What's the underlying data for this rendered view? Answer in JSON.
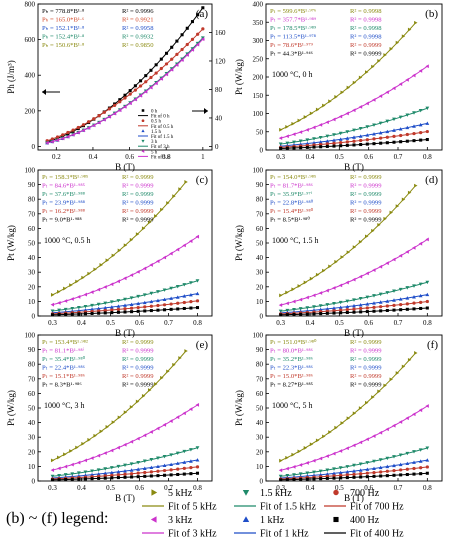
{
  "chart_data": [
    {
      "id": "a",
      "panel_label": "(a)",
      "type": "scatter",
      "xlabel": "B (T)",
      "ylabel": "Ph (J/m³)",
      "y2label": "",
      "xlim": [
        0.1,
        1.05
      ],
      "ylim": [
        -20,
        800
      ],
      "y2lim": [
        -5,
        200
      ],
      "xticks": [
        0.2,
        0.4,
        0.6,
        0.8,
        1.0
      ],
      "yticks": [
        0,
        200,
        400,
        600,
        800
      ],
      "y2ticks": [
        0,
        40,
        80,
        120,
        160
      ],
      "equations": [
        {
          "text": "Pₕ = 778.8*B¹·⁸",
          "r2": "R² = 0.9996",
          "color": "#000000"
        },
        {
          "text": "Pₕ = 165.0*B¹·⁶",
          "r2": "R² = 0.9921",
          "color": "#d2492a"
        },
        {
          "text": "Pₕ = 152.1*B¹·⁸",
          "r2": "R² = 0.9958",
          "color": "#1f4ec8"
        },
        {
          "text": "Pₕ = 152.4*B¹·⁸",
          "r2": "R² = 0.9932",
          "color": "#1f8a6a"
        },
        {
          "text": "Pₕ = 150.6*B¹·⁸",
          "r2": "R² = 0.9850",
          "color": "#8a8a10"
        }
      ],
      "legend": [
        {
          "label": "0 h",
          "kind": "marker",
          "marker": "square",
          "color": "#000000"
        },
        {
          "label": "Fit of 0 h",
          "kind": "line",
          "color": "#000000"
        },
        {
          "label": "0.5 h",
          "kind": "marker",
          "marker": "circle",
          "color": "#c0392b"
        },
        {
          "label": "Fit of 0.5 h",
          "kind": "line",
          "color": "#c0392b"
        },
        {
          "label": "1.5 h",
          "kind": "marker",
          "marker": "triangle-up",
          "color": "#1f4ec8"
        },
        {
          "label": "Fit of 1.5 h",
          "kind": "line",
          "color": "#1f4ec8"
        },
        {
          "label": "3 h",
          "kind": "marker",
          "marker": "triangle-down",
          "color": "#1f8a6a"
        },
        {
          "label": "Fit of 3 h",
          "kind": "line",
          "color": "#1f8a6a"
        },
        {
          "label": "5 h",
          "kind": "marker",
          "marker": "triangle-left",
          "color": "#cc33cc"
        },
        {
          "label": "Fit of 5 h",
          "kind": "line",
          "color": "#cc33cc"
        }
      ],
      "annotation": "",
      "series": [
        {
          "name": "0 h",
          "axis": "left",
          "coef": 778.8,
          "exp": 1.8,
          "color": "#000000",
          "marker": "square"
        },
        {
          "name": "0.5 h",
          "axis": "right",
          "coef": 165.0,
          "exp": 1.6,
          "color": "#c0392b",
          "marker": "circle"
        },
        {
          "name": "1.5 h",
          "axis": "right",
          "coef": 152.1,
          "exp": 1.8,
          "color": "#1f4ec8",
          "marker": "triangle-up"
        },
        {
          "name": "3 h",
          "axis": "right",
          "coef": 152.4,
          "exp": 1.8,
          "color": "#1f8a6a",
          "marker": "triangle-down"
        },
        {
          "name": "5 h",
          "axis": "right",
          "coef": 150.6,
          "exp": 1.8,
          "color": "#cc33cc",
          "marker": "triangle-left"
        }
      ]
    },
    {
      "id": "b",
      "panel_label": "(b)",
      "type": "scatter",
      "xlabel": "B (T)",
      "ylabel": "Pt (W/kg)",
      "xlim": [
        0.25,
        0.85
      ],
      "ylim": [
        0,
        400
      ],
      "xticks": [
        0.3,
        0.4,
        0.5,
        0.6,
        0.7,
        0.8
      ],
      "yticks": [
        0,
        50,
        100,
        150,
        200,
        250,
        300,
        350,
        400
      ],
      "annotation": "1000 °C, 0 h",
      "equations": [
        {
          "text": "Pₜ = 599.6*B¹·⁹⁷⁶",
          "r2": "R² = 0.9998",
          "color": "#8a8a10"
        },
        {
          "text": "Pₜ = 357.7*B¹·⁹⁸⁹",
          "r2": "R² = 0.9998",
          "color": "#cc33cc"
        },
        {
          "text": "Pₜ = 178.5*B¹·⁹⁸⁹",
          "r2": "R² = 0.9998",
          "color": "#1f8a6a"
        },
        {
          "text": "Pₜ = 113.5*B¹·⁹⁷⁸",
          "r2": "R² = 0.9998",
          "color": "#1f4ec8"
        },
        {
          "text": "Pₜ = 78.6*B¹·⁹⁷⁹",
          "r2": "R² = 0.9999",
          "color": "#c0392b"
        },
        {
          "text": "Pₜ = 44.3*B¹·⁹⁴⁶",
          "r2": "R² = 0.9999",
          "color": "#000000"
        }
      ],
      "series": [
        {
          "name": "5 kHz",
          "coef": 599.6,
          "exp": 1.976,
          "xmax": 0.76
        },
        {
          "name": "3 kHz",
          "coef": 357.7,
          "exp": 1.989,
          "xmax": 0.8
        },
        {
          "name": "1.5 kHz",
          "coef": 178.5,
          "exp": 1.989,
          "xmax": 0.8
        },
        {
          "name": "1 kHz",
          "coef": 113.5,
          "exp": 1.978,
          "xmax": 0.8
        },
        {
          "name": "700 Hz",
          "coef": 78.6,
          "exp": 1.979,
          "xmax": 0.8
        },
        {
          "name": "400 Hz",
          "coef": 44.3,
          "exp": 1.946,
          "xmax": 0.8
        }
      ]
    },
    {
      "id": "c",
      "panel_label": "(c)",
      "type": "scatter",
      "xlabel": "B (T)",
      "ylabel": "Pt (W/kg)",
      "xlim": [
        0.25,
        0.85
      ],
      "ylim": [
        0,
        100
      ],
      "xticks": [
        0.3,
        0.4,
        0.5,
        0.6,
        0.7,
        0.8
      ],
      "yticks": [
        0,
        10,
        20,
        30,
        40,
        50,
        60,
        70,
        80,
        90,
        100
      ],
      "annotation": "1000 °C, 0.5 h",
      "equations": [
        {
          "text": "Pₜ = 158.3*B¹·⁹⁸⁵",
          "r2": "R² = 0.9999",
          "color": "#8a8a10"
        },
        {
          "text": "Pₜ = 84.6*B¹·⁹⁸⁵",
          "r2": "R² = 0.9999",
          "color": "#cc33cc"
        },
        {
          "text": "Pₜ = 37.6*B¹·⁹⁸⁸",
          "r2": "R² = 0.9999",
          "color": "#1f8a6a"
        },
        {
          "text": "Pₜ = 23.9*B¹·⁹⁸⁸",
          "r2": "R² = 0.9999",
          "color": "#1f4ec8"
        },
        {
          "text": "Pₜ = 16.2*B¹·⁹⁸⁸",
          "r2": "R² = 0.9999",
          "color": "#c0392b"
        },
        {
          "text": "Pₜ = 9.0*B¹·⁹⁸⁸",
          "r2": "R² = 0.9999",
          "color": "#000000"
        }
      ],
      "series": [
        {
          "name": "5 kHz",
          "coef": 158.3,
          "exp": 1.985,
          "xmax": 0.76
        },
        {
          "name": "3 kHz",
          "coef": 84.6,
          "exp": 1.985,
          "xmax": 0.8
        },
        {
          "name": "1.5 kHz",
          "coef": 37.6,
          "exp": 1.988,
          "xmax": 0.8
        },
        {
          "name": "1 kHz",
          "coef": 23.9,
          "exp": 1.988,
          "xmax": 0.8
        },
        {
          "name": "700 Hz",
          "coef": 16.2,
          "exp": 1.988,
          "xmax": 0.8
        },
        {
          "name": "400 Hz",
          "coef": 9.0,
          "exp": 1.988,
          "xmax": 0.8
        }
      ]
    },
    {
      "id": "d",
      "panel_label": "(d)",
      "type": "scatter",
      "xlabel": "B (T)",
      "ylabel": "Pt (W/kg)",
      "xlim": [
        0.25,
        0.85
      ],
      "ylim": [
        0,
        100
      ],
      "xticks": [
        0.3,
        0.4,
        0.5,
        0.6,
        0.7,
        0.8
      ],
      "yticks": [
        0,
        10,
        20,
        30,
        40,
        50,
        60,
        70,
        80,
        90,
        100
      ],
      "annotation": "1000 °C, 1.5 h",
      "equations": [
        {
          "text": "Pₜ = 154.0*B¹·⁹⁸⁵",
          "r2": "R² = 0.9999",
          "color": "#8a8a10"
        },
        {
          "text": "Pₜ = 81.7*B¹·⁹⁸⁶",
          "r2": "R² = 0.9999",
          "color": "#cc33cc"
        },
        {
          "text": "Pₜ = 35.9*B¹·⁹⁷ⁱ",
          "r2": "R² = 0.9999",
          "color": "#1f8a6a"
        },
        {
          "text": "Pₜ = 22.8*B¹·⁹⁸⁰",
          "r2": "R² = 0.9999",
          "color": "#1f4ec8"
        },
        {
          "text": "Pₜ = 15.4*B¹·⁹⁸⁰",
          "r2": "R² = 0.9999",
          "color": "#c0392b"
        },
        {
          "text": "Pₜ = 8.5*B¹·⁹⁸⁰",
          "r2": "R² = 0.9999",
          "color": "#000000"
        }
      ],
      "series": [
        {
          "name": "5 kHz",
          "coef": 154.0,
          "exp": 1.985,
          "xmax": 0.76
        },
        {
          "name": "3 kHz",
          "coef": 81.7,
          "exp": 1.986,
          "xmax": 0.8
        },
        {
          "name": "1.5 kHz",
          "coef": 35.9,
          "exp": 1.971,
          "xmax": 0.8
        },
        {
          "name": "1 kHz",
          "coef": 22.8,
          "exp": 1.98,
          "xmax": 0.8
        },
        {
          "name": "700 Hz",
          "coef": 15.4,
          "exp": 1.98,
          "xmax": 0.8
        },
        {
          "name": "400 Hz",
          "coef": 8.5,
          "exp": 1.98,
          "xmax": 0.8
        }
      ]
    },
    {
      "id": "e",
      "panel_label": "(e)",
      "type": "scatter",
      "xlabel": "B (T)",
      "ylabel": "Pt (W/kg)",
      "xlim": [
        0.25,
        0.85
      ],
      "ylim": [
        0,
        100
      ],
      "xticks": [
        0.3,
        0.4,
        0.5,
        0.6,
        0.7,
        0.8
      ],
      "yticks": [
        0,
        10,
        20,
        30,
        40,
        50,
        60,
        70,
        80,
        90,
        100
      ],
      "annotation": "1000 °C, 3 h",
      "equations": [
        {
          "text": "Pₜ = 153.4*B¹·⁹⁸²",
          "r2": "R² = 0.9999",
          "color": "#8a8a10"
        },
        {
          "text": "Pₜ = 81.1*B¹·⁹⁸ⁱ",
          "r2": "R² = 0.9999",
          "color": "#cc33cc"
        },
        {
          "text": "Pₜ = 35.4*B¹·⁹⁸⁰",
          "r2": "R² = 0.9999",
          "color": "#1f8a6a"
        },
        {
          "text": "Pₜ = 22.4*B¹·⁹⁸⁶",
          "r2": "R² = 0.9999",
          "color": "#1f4ec8"
        },
        {
          "text": "Pₜ = 15.1*B¹·⁹⁸⁶",
          "r2": "R² = 0.9999",
          "color": "#c0392b"
        },
        {
          "text": "Pₜ = 8.3*B¹·⁹⁸⁶",
          "r2": "R² = 0.9999",
          "color": "#000000"
        }
      ],
      "series": [
        {
          "name": "5 kHz",
          "coef": 153.4,
          "exp": 1.982,
          "xmax": 0.76
        },
        {
          "name": "3 kHz",
          "coef": 81.1,
          "exp": 1.981,
          "xmax": 0.8
        },
        {
          "name": "1.5 kHz",
          "coef": 35.4,
          "exp": 1.98,
          "xmax": 0.8
        },
        {
          "name": "1 kHz",
          "coef": 22.4,
          "exp": 1.986,
          "xmax": 0.8
        },
        {
          "name": "700 Hz",
          "coef": 15.1,
          "exp": 1.986,
          "xmax": 0.8
        },
        {
          "name": "400 Hz",
          "coef": 8.3,
          "exp": 1.986,
          "xmax": 0.8
        }
      ]
    },
    {
      "id": "f",
      "panel_label": "(f)",
      "type": "scatter",
      "xlabel": "B (T)",
      "ylabel": "Pt (W/kg)",
      "xlim": [
        0.25,
        0.85
      ],
      "ylim": [
        0,
        100
      ],
      "xticks": [
        0.3,
        0.4,
        0.5,
        0.6,
        0.7,
        0.8
      ],
      "yticks": [
        0,
        10,
        20,
        30,
        40,
        50,
        60,
        70,
        80,
        90,
        100
      ],
      "annotation": "1000 °C, 5 h",
      "equations": [
        {
          "text": "Pₜ = 151.0*B¹·⁹⁸⁰",
          "r2": "R² = 0.9999",
          "color": "#8a8a10"
        },
        {
          "text": "Pₜ = 80.0*B¹·⁹⁸⁶",
          "r2": "R² = 0.9999",
          "color": "#cc33cc"
        },
        {
          "text": "Pₜ = 35.2*B¹·⁹⁸⁶",
          "r2": "R² = 0.9999",
          "color": "#1f8a6a"
        },
        {
          "text": "Pₜ = 22.3*B¹·⁹⁸⁶",
          "r2": "R² = 0.9999",
          "color": "#1f4ec8"
        },
        {
          "text": "Pₜ = 15.0*B¹·⁹⁸⁶",
          "r2": "R² = 0.9999",
          "color": "#c0392b"
        },
        {
          "text": "Pₜ = 8.27*B¹·⁹⁸⁵",
          "r2": "R² = 0.9999",
          "color": "#000000"
        }
      ],
      "series": [
        {
          "name": "5 kHz",
          "coef": 151.0,
          "exp": 1.98,
          "xmax": 0.76
        },
        {
          "name": "3 kHz",
          "coef": 80.0,
          "exp": 1.986,
          "xmax": 0.8
        },
        {
          "name": "1.5 kHz",
          "coef": 35.2,
          "exp": 1.986,
          "xmax": 0.8
        },
        {
          "name": "1 kHz",
          "coef": 22.3,
          "exp": 1.986,
          "xmax": 0.8
        },
        {
          "name": "700 Hz",
          "coef": 15.0,
          "exp": 1.986,
          "xmax": 0.8
        },
        {
          "name": "400 Hz",
          "coef": 8.27,
          "exp": 1.985,
          "xmax": 0.8
        }
      ]
    }
  ],
  "frequency_styles": {
    "5 kHz": {
      "color": "#8a8a10",
      "marker": "triangle-right"
    },
    "3 kHz": {
      "color": "#cc33cc",
      "marker": "triangle-left"
    },
    "1.5 kHz": {
      "color": "#1f8a6a",
      "marker": "triangle-down"
    },
    "1 kHz": {
      "color": "#1f4ec8",
      "marker": "triangle-up"
    },
    "700 Hz": {
      "color": "#c0392b",
      "marker": "circle"
    },
    "400 Hz": {
      "color": "#000000",
      "marker": "square"
    }
  },
  "bottom_legend": {
    "title": "(b) ~ (f) legend:",
    "entries": [
      {
        "label": "5 kHz",
        "kind": "marker",
        "marker": "triangle-right",
        "color": "#8a8a10"
      },
      {
        "label": "1.5 kHz",
        "kind": "marker",
        "marker": "triangle-down",
        "color": "#1f8a6a"
      },
      {
        "label": "700 Hz",
        "kind": "marker",
        "marker": "circle",
        "color": "#c0392b"
      },
      {
        "label": "Fit of  5 kHz",
        "kind": "line",
        "color": "#8a8a10"
      },
      {
        "label": "Fit of  1.5 kHz",
        "kind": "line",
        "color": "#1f8a6a"
      },
      {
        "label": "Fit of  700 Hz",
        "kind": "line",
        "color": "#c0392b"
      },
      {
        "label": "3 kHz",
        "kind": "marker",
        "marker": "triangle-left",
        "color": "#cc33cc"
      },
      {
        "label": "1 kHz",
        "kind": "marker",
        "marker": "triangle-up",
        "color": "#1f4ec8"
      },
      {
        "label": "400 Hz",
        "kind": "marker",
        "marker": "square",
        "color": "#000000"
      },
      {
        "label": "Fit of  3 kHz",
        "kind": "line",
        "color": "#cc33cc"
      },
      {
        "label": "Fit of  1 kHz",
        "kind": "line",
        "color": "#1f4ec8"
      },
      {
        "label": "Fit of  400 Hz",
        "kind": "line",
        "color": "#000000"
      }
    ]
  }
}
